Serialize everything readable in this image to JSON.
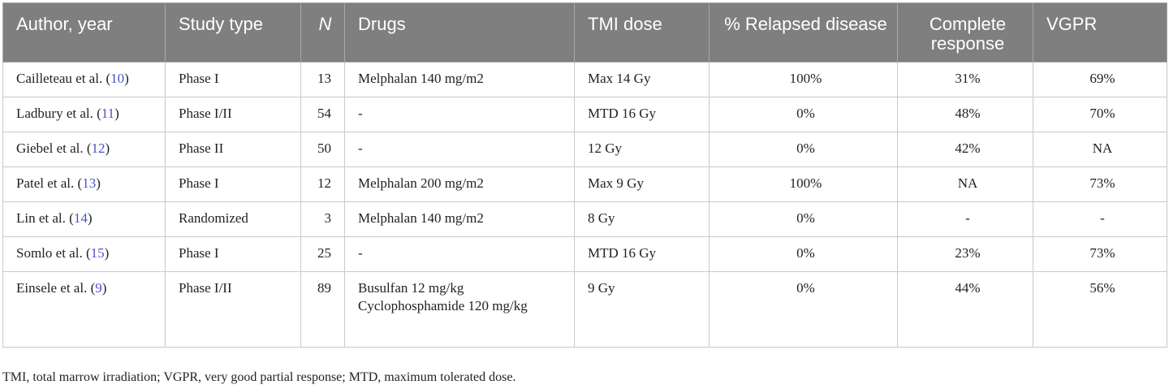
{
  "headers": {
    "author": "Author, year",
    "study_type": "Study type",
    "n": "N",
    "drugs": "Drugs",
    "tmi_dose": "TMI dose",
    "relapsed": "% Relapsed disease",
    "complete": "Complete response",
    "vgpr": "VGPR"
  },
  "rows": [
    {
      "author": "Cailleteau et al. (",
      "ref": "10",
      "study": "Phase I",
      "n": "13",
      "drugs": "Melphalan 140 mg/m2",
      "dose": "Max 14 Gy",
      "relapsed": "100%",
      "cr": "31%",
      "vgpr": "69%"
    },
    {
      "author": "Ladbury et al. (",
      "ref": "11",
      "study": "Phase I/II",
      "n": "54",
      "drugs": "-",
      "dose": "MTD 16 Gy",
      "relapsed": "0%",
      "cr": "48%",
      "vgpr": "70%"
    },
    {
      "author": "Giebel et al. (",
      "ref": "12",
      "study": "Phase II",
      "n": "50",
      "drugs": "-",
      "dose": "12 Gy",
      "relapsed": "0%",
      "cr": "42%",
      "vgpr": "NA"
    },
    {
      "author": "Patel et al. (",
      "ref": "13",
      "study": "Phase I",
      "n": "12",
      "drugs": "Melphalan 200 mg/m2",
      "dose": "Max 9 Gy",
      "relapsed": "100%",
      "cr": "NA",
      "vgpr": "73%"
    },
    {
      "author": "Lin et al. (",
      "ref": "14",
      "study": "Randomized",
      "n": "3",
      "drugs": "Melphalan 140 mg/m2",
      "dose": "8 Gy",
      "relapsed": "0%",
      "cr": "-",
      "vgpr": "-"
    },
    {
      "author": "Somlo et al. (",
      "ref": "15",
      "study": "Phase I",
      "n": "25",
      "drugs": "-",
      "dose": "MTD 16 Gy",
      "relapsed": "0%",
      "cr": "23%",
      "vgpr": "73%"
    },
    {
      "author": "Einsele et al. (",
      "ref": "9",
      "study": "Phase I/II",
      "n": "89",
      "drugs": "Busulfan 12 mg/kg Cyclophosphamide 120 mg/kg",
      "dose": "9 Gy",
      "relapsed": "0%",
      "cr": "44%",
      "vgpr": "56%"
    }
  ],
  "close_paren": ")",
  "footnote": "TMI, total marrow irradiation; VGPR, very good partial response; MTD, maximum tolerated dose."
}
